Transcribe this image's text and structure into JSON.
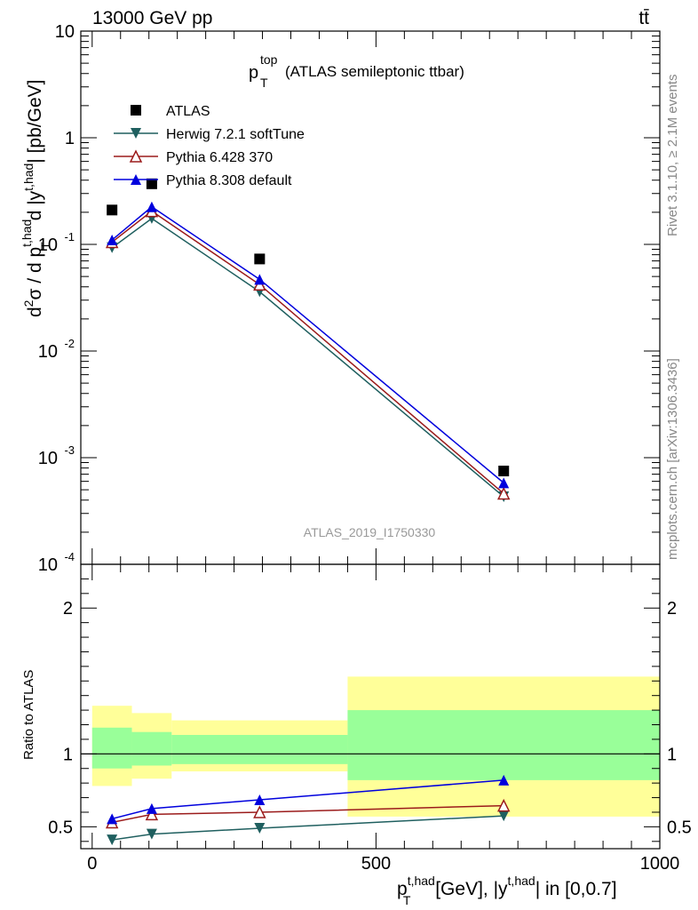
{
  "header": {
    "energy_label": "13000 GeV pp",
    "process_label": "tt̄"
  },
  "side_labels": {
    "rivet": "Rivet 3.1.10, ≥ 2.1M events",
    "mcplots": "mcplots.cern.ch [arXiv:1306.3436]"
  },
  "chart_data": [
    {
      "type": "line",
      "panel": "main",
      "title_main": "p",
      "title_sup": "top",
      "title_sub": "T",
      "title_rest": "(ATLAS semileptonic ttbar)",
      "analysis_label": "ATLAS_2019_I1750330",
      "y_log": true,
      "ylim": [
        0.0001,
        10
      ],
      "xlim": [
        -20,
        1000
      ],
      "yticks": [
        {
          "base": "10",
          "exp": "-4",
          "value": 0.0001
        },
        {
          "base": "10",
          "exp": "-3",
          "value": 0.001
        },
        {
          "base": "10",
          "exp": "-2",
          "value": 0.01
        },
        {
          "base": "10",
          "exp": "-1",
          "value": 0.1
        },
        {
          "base": "1",
          "exp": "",
          "value": 1
        },
        {
          "base": "10",
          "exp": "",
          "value": 10
        }
      ],
      "ylabel": {
        "pre": "d",
        "pre_sup": "2",
        "mid": "σ / d p",
        "mid_sup": "t,had",
        "mid_sub": "T",
        "mid2": " d |y",
        "mid2_sup": "t,had",
        "post": "| [pb/GeV]"
      },
      "x": [
        35,
        105,
        295,
        725
      ],
      "bins": [
        [
          0,
          70
        ],
        [
          70,
          140
        ],
        [
          140,
          450
        ],
        [
          450,
          1000
        ]
      ],
      "legend_placement": "top-left",
      "series": [
        {
          "name": "ATLAS",
          "marker": "square",
          "color": "#000000",
          "values": [
            0.21,
            0.37,
            0.073,
            0.00075
          ]
        },
        {
          "name": "Herwig 7.2.1 softTune",
          "marker": "triangle-down",
          "color": "#1f5f5f",
          "values": [
            0.093,
            0.175,
            0.036,
            0.00043
          ]
        },
        {
          "name": "Pythia 6.428 370",
          "marker": "triangle-up-open",
          "color": "#9b1b1b",
          "values": [
            0.105,
            0.205,
            0.042,
            0.00046
          ]
        },
        {
          "name": "Pythia 8.308 default",
          "marker": "triangle-up",
          "color": "#0000dd",
          "values": [
            0.11,
            0.225,
            0.047,
            0.00058
          ]
        }
      ]
    },
    {
      "type": "line",
      "panel": "ratio",
      "ylabel": "Ratio to ATLAS",
      "ylim": [
        0.35,
        2.3
      ],
      "xlim": [
        -20,
        1000
      ],
      "yticks": [
        0.5,
        1,
        2
      ],
      "xticks": [
        0,
        500,
        1000
      ],
      "xlabel": {
        "p": "p",
        "p_sup": "t,had",
        "p_sub": "T",
        "mid": " [GeV], |y",
        "mid_sup": "t,had",
        "post": "| in [0,0.7]"
      },
      "bands": [
        {
          "x0": 0,
          "x1": 70,
          "yellow": [
            0.78,
            1.33
          ],
          "green": [
            0.9,
            1.18
          ]
        },
        {
          "x0": 70,
          "x1": 140,
          "yellow": [
            0.83,
            1.28
          ],
          "green": [
            0.92,
            1.15
          ]
        },
        {
          "x0": 140,
          "x1": 450,
          "yellow": [
            0.88,
            1.23
          ],
          "green": [
            0.93,
            1.13
          ]
        },
        {
          "x0": 450,
          "x1": 1000,
          "yellow": [
            0.57,
            1.53
          ],
          "green": [
            0.82,
            1.3
          ]
        }
      ],
      "series": [
        {
          "name": "Herwig 7.2.1 softTune",
          "marker": "triangle-down",
          "color": "#1f5f5f",
          "values": [
            0.41,
            0.45,
            0.49,
            0.575
          ]
        },
        {
          "name": "Pythia 6.428 370",
          "marker": "triangle-up-open",
          "color": "#9b1b1b",
          "values": [
            0.53,
            0.585,
            0.6,
            0.645
          ]
        },
        {
          "name": "Pythia 8.308 default",
          "marker": "triangle-up",
          "color": "#0000dd",
          "values": [
            0.555,
            0.625,
            0.685,
            0.82
          ]
        }
      ]
    }
  ]
}
